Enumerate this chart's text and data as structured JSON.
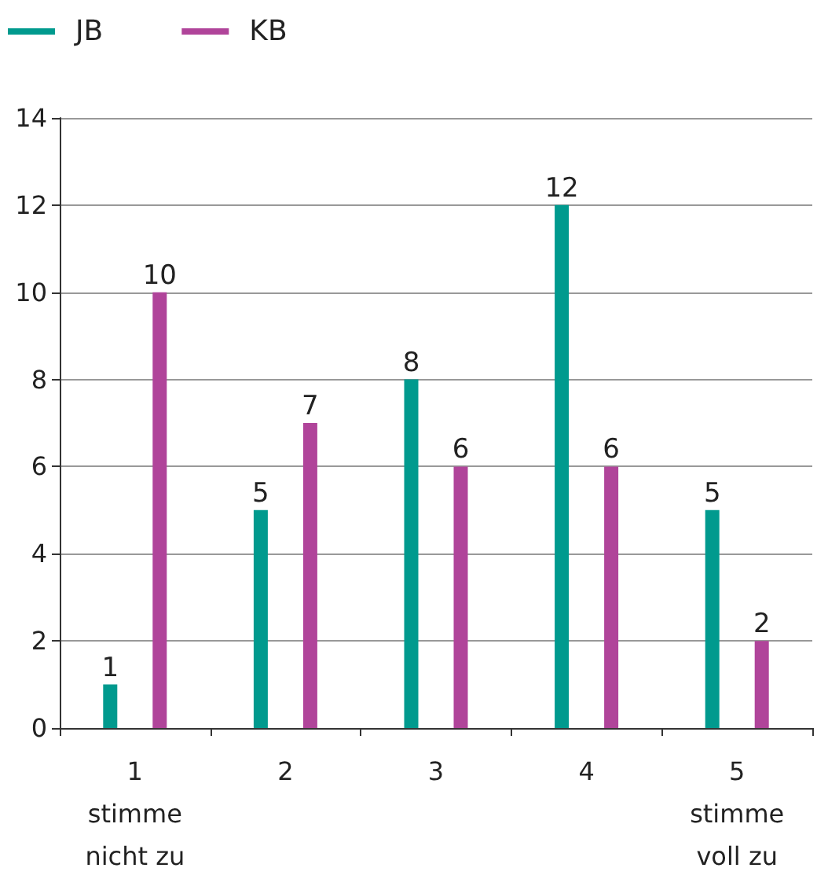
{
  "chart_data": {
    "type": "bar",
    "categories": [
      "1\nstimme\nnicht zu",
      "2",
      "3",
      "4",
      "5\nstimme\nvoll zu"
    ],
    "series": [
      {
        "name": "JB",
        "color": "#009a8e",
        "values": [
          1,
          5,
          8,
          12,
          5
        ]
      },
      {
        "name": "KB",
        "color": "#b0449a",
        "values": [
          10,
          7,
          6,
          6,
          2
        ]
      }
    ],
    "ylim": [
      0,
      14
    ],
    "yticks": [
      0,
      2,
      4,
      6,
      8,
      10,
      12,
      14
    ],
    "grid": "y",
    "legend": "top left",
    "data_labels": true
  }
}
